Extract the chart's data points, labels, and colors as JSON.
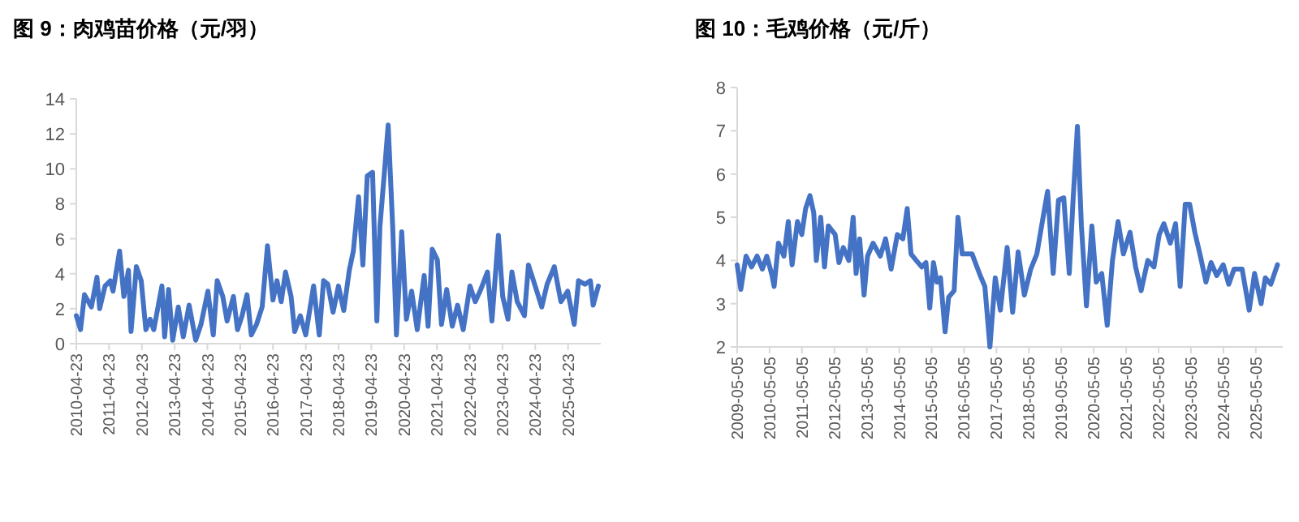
{
  "chart_data": [
    {
      "type": "line",
      "title": "图 9：肉鸡苗价格（元/羽）",
      "color": "#4472c4",
      "xlim": [
        "2010-04-23",
        "2026-04-23"
      ],
      "ylim": [
        0,
        14
      ],
      "yticks": [
        0,
        2,
        4,
        6,
        8,
        10,
        12,
        14
      ],
      "xticks": [
        "2010-04-23",
        "2011-04-23",
        "2012-04-23",
        "2013-04-23",
        "2014-04-23",
        "2015-04-23",
        "2016-04-23",
        "2017-04-23",
        "2018-04-23",
        "2019-04-23",
        "2020-04-23",
        "2021-04-23",
        "2022-04-23",
        "2023-04-23",
        "2024-04-23",
        "2025-04-23"
      ],
      "x": [
        "2010-04-23",
        "2010-06-09",
        "2010-07-23",
        "2010-10-08",
        "2010-12-09",
        "2011-01-08",
        "2011-03-09",
        "2011-05-07",
        "2011-06-06",
        "2011-08-18",
        "2011-10-05",
        "2011-11-25",
        "2011-12-24",
        "2012-02-21",
        "2012-04-15",
        "2012-06-06",
        "2012-07-23",
        "2012-09-02",
        "2012-12-02",
        "2013-01-01",
        "2013-02-14",
        "2013-04-01",
        "2013-06-02",
        "2013-07-28",
        "2013-10-01",
        "2013-12-13",
        "2014-02-10",
        "2014-04-28",
        "2014-06-27",
        "2014-08-10",
        "2014-10-11",
        "2014-11-28",
        "2015-02-07",
        "2015-03-24",
        "2015-05-14",
        "2015-07-08",
        "2015-08-25",
        "2015-10-22",
        "2015-12-24",
        "2016-02-21",
        "2016-04-22",
        "2016-06-06",
        "2016-07-23",
        "2016-09-09",
        "2016-11-10",
        "2016-12-20",
        "2017-02-21",
        "2017-04-22",
        "2017-07-19",
        "2017-09-20",
        "2017-11-07",
        "2017-12-24",
        "2018-02-21",
        "2018-04-22",
        "2018-06-20",
        "2018-08-21",
        "2018-10-05",
        "2018-12-02",
        "2019-01-19",
        "2019-03-09",
        "2019-05-07",
        "2019-06-24",
        "2019-07-28",
        "2019-09-16",
        "2019-10-28",
        "2019-12-17",
        "2020-01-28",
        "2020-03-27",
        "2020-05-18",
        "2020-07-15",
        "2020-09-16",
        "2020-12-02",
        "2021-01-15",
        "2021-03-02",
        "2021-04-28",
        "2021-06-13",
        "2021-08-10",
        "2021-10-11",
        "2021-12-09",
        "2022-02-10",
        "2022-04-26",
        "2022-06-24",
        "2022-08-25",
        "2022-11-07",
        "2022-12-27",
        "2023-03-09",
        "2023-04-26",
        "2023-06-24",
        "2023-08-07",
        "2023-10-05",
        "2023-12-24",
        "2024-02-07",
        "2024-04-22",
        "2024-07-04",
        "2024-09-02",
        "2024-11-21",
        "2025-02-03",
        "2025-04-19",
        "2025-07-01",
        "2025-08-18",
        "2025-10-28",
        "2025-12-28",
        "2026-01-28",
        "2026-03-27"
      ],
      "values": [
        1.6,
        0.8,
        2.8,
        2.1,
        3.8,
        2.0,
        3.3,
        3.6,
        3.0,
        5.3,
        2.7,
        4.2,
        0.7,
        4.4,
        3.6,
        0.8,
        1.4,
        0.8,
        3.3,
        0.4,
        3.1,
        0.2,
        2.1,
        0.4,
        2.2,
        0.2,
        1.1,
        3.0,
        0.5,
        3.6,
        2.7,
        1.3,
        2.7,
        0.8,
        1.6,
        2.8,
        0.5,
        1.1,
        2.1,
        5.6,
        2.5,
        3.6,
        2.4,
        4.1,
        2.7,
        0.7,
        1.6,
        0.5,
        3.3,
        0.5,
        3.6,
        3.4,
        1.8,
        3.3,
        1.9,
        4.2,
        5.3,
        8.4,
        4.5,
        9.6,
        9.8,
        1.3,
        6.7,
        9.8,
        12.5,
        6.7,
        0.5,
        6.4,
        1.4,
        3.0,
        0.8,
        3.9,
        1.0,
        5.4,
        4.8,
        1.1,
        3.1,
        1.0,
        2.2,
        0.8,
        3.3,
        2.4,
        3.1,
        4.1,
        1.3,
        6.2,
        2.7,
        1.4,
        4.1,
        2.4,
        1.6,
        4.5,
        3.3,
        2.1,
        3.4,
        4.4,
        2.4,
        3.0,
        1.1,
        3.6,
        3.4,
        3.6,
        2.2,
        3.3
      ]
    },
    {
      "type": "line",
      "title": "图 10：毛鸡价格（元/斤）",
      "color": "#4472c4",
      "xlim": [
        "2009-05-05",
        "2026-03-05"
      ],
      "ylim": [
        2,
        8
      ],
      "yticks": [
        2,
        3,
        4,
        5,
        6,
        7,
        8
      ],
      "xticks": [
        "2009-05-05",
        "2010-05-05",
        "2011-05-05",
        "2012-05-05",
        "2013-05-05",
        "2014-05-05",
        "2015-05-05",
        "2016-05-05",
        "2017-05-05",
        "2018-05-05",
        "2019-05-05",
        "2020-05-05",
        "2021-05-05",
        "2022-05-05",
        "2023-05-05",
        "2024-05-05",
        "2025-05-05"
      ],
      "x": [
        "2009-05-05",
        "2009-06-15",
        "2009-08-13",
        "2009-10-14",
        "2009-12-15",
        "2010-02-13",
        "2010-04-04",
        "2010-06-02",
        "2010-06-25",
        "2010-08-13",
        "2010-10-14",
        "2010-12-02",
        "2011-01-14",
        "2011-03-15",
        "2011-05-03",
        "2011-06-15",
        "2011-08-03",
        "2011-09-15",
        "2011-10-14",
        "2011-12-02",
        "2012-01-14",
        "2012-02-26",
        "2012-05-13",
        "2012-06-25",
        "2012-08-13",
        "2012-10-14",
        "2012-12-02",
        "2013-01-04",
        "2013-02-13",
        "2013-04-04",
        "2013-05-13",
        "2013-07-14",
        "2013-10-04",
        "2013-12-02",
        "2014-02-03",
        "2014-04-14",
        "2014-06-15",
        "2014-08-03",
        "2014-09-15",
        "2014-11-13",
        "2015-01-14",
        "2015-03-02",
        "2015-04-14",
        "2015-05-26",
        "2015-07-04",
        "2015-08-13",
        "2015-10-04",
        "2015-11-13",
        "2016-01-14",
        "2016-02-26",
        "2016-04-14",
        "2016-08-03",
        "2016-11-03",
        "2016-12-25",
        "2017-02-20",
        "2017-04-21",
        "2017-06-18",
        "2017-09-02",
        "2017-11-03",
        "2018-01-04",
        "2018-03-15",
        "2018-05-26",
        "2018-08-03",
        "2018-10-04",
        "2018-12-02",
        "2019-02-03",
        "2019-04-04",
        "2019-06-02",
        "2019-08-03",
        "2019-09-15",
        "2019-11-03",
        "2019-12-18",
        "2020-02-13",
        "2020-04-14",
        "2020-06-02",
        "2020-08-03",
        "2020-10-04",
        "2020-12-02",
        "2021-02-03",
        "2021-04-04",
        "2021-06-18",
        "2021-08-20",
        "2021-10-21",
        "2022-01-04",
        "2022-03-15",
        "2022-05-13",
        "2022-07-04",
        "2022-09-15",
        "2022-11-13",
        "2023-01-04",
        "2023-03-02",
        "2023-04-21",
        "2023-06-18",
        "2023-08-20",
        "2023-10-21",
        "2023-12-18",
        "2024-02-20",
        "2024-05-03",
        "2024-07-04",
        "2024-09-02",
        "2024-12-02",
        "2025-02-20",
        "2025-04-21",
        "2025-07-04",
        "2025-08-20",
        "2025-10-21",
        "2026-01-04"
      ],
      "values": [
        3.9,
        3.33,
        4.1,
        3.85,
        4.1,
        3.8,
        4.1,
        3.65,
        3.4,
        4.4,
        4.1,
        4.9,
        3.9,
        4.9,
        4.6,
        5.2,
        5.5,
        5.1,
        4.0,
        5.0,
        3.85,
        4.8,
        4.6,
        3.95,
        4.3,
        4.0,
        5.0,
        3.7,
        4.5,
        3.2,
        4.1,
        4.4,
        4.1,
        4.5,
        3.8,
        4.6,
        4.5,
        5.2,
        4.15,
        4.0,
        3.85,
        3.95,
        2.9,
        3.95,
        3.5,
        3.6,
        2.35,
        3.15,
        3.3,
        5.0,
        4.15,
        4.15,
        3.65,
        3.4,
        2.0,
        3.6,
        2.85,
        4.3,
        2.8,
        4.2,
        3.2,
        3.8,
        4.15,
        4.9,
        5.6,
        3.7,
        5.4,
        5.45,
        3.7,
        5.4,
        7.1,
        4.8,
        2.95,
        4.8,
        3.5,
        3.7,
        2.5,
        4.0,
        4.9,
        4.15,
        4.65,
        3.85,
        3.3,
        4.0,
        3.85,
        4.6,
        4.85,
        4.4,
        4.85,
        3.4,
        5.3,
        5.3,
        4.65,
        4.1,
        3.5,
        3.95,
        3.65,
        3.9,
        3.45,
        3.8,
        3.8,
        2.85,
        3.7,
        3.0,
        3.6,
        3.45,
        3.9
      ]
    }
  ]
}
